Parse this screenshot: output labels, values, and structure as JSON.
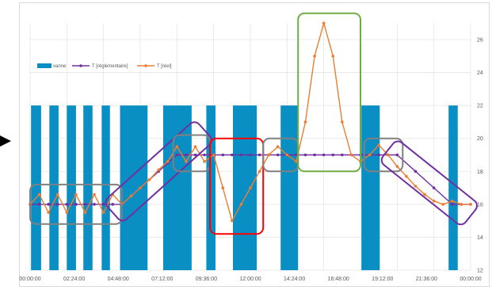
{
  "chart_data": {
    "type": "bar+line",
    "x_tick_labels": [
      "00:00:00",
      "02:24:00",
      "04:48:00",
      "07:12:00",
      "09:36:00",
      "12:00:00",
      "14:24:00",
      "16:48:00",
      "19:12:00",
      "21:36:00",
      "00:00:00"
    ],
    "y_tick_labels": [
      "12",
      "14",
      "16",
      "18",
      "20",
      "22",
      "24",
      "26"
    ],
    "ylim": [
      12,
      27
    ],
    "grid": true,
    "legend_position": "top-left",
    "series": [
      {
        "name": "vanne",
        "kind": "bar",
        "color": "#0a8fc4",
        "value": 22,
        "intervals_hours": [
          [
            0.05,
            0.6
          ],
          [
            1.05,
            1.55
          ],
          [
            2.0,
            2.5
          ],
          [
            2.9,
            3.4
          ],
          [
            3.9,
            4.35
          ],
          [
            4.9,
            6.4
          ],
          [
            7.25,
            8.8
          ],
          [
            9.6,
            10.1
          ],
          [
            11.05,
            12.35
          ],
          [
            13.65,
            14.6
          ],
          [
            18.05,
            19.05
          ],
          [
            22.8,
            23.3
          ]
        ]
      },
      {
        "name": "T [réglementaire]",
        "kind": "line",
        "color": "#7030a0",
        "x_hours": [
          0,
          0.5,
          1,
          1.5,
          2,
          2.5,
          3,
          3.5,
          4,
          4.5,
          5,
          6,
          7,
          7.5,
          8,
          8.5,
          9,
          9.5,
          10,
          10.5,
          11,
          11.5,
          12,
          12.5,
          13,
          13.5,
          14,
          14.5,
          15,
          15.5,
          16,
          16.5,
          17,
          17.5,
          18,
          18.5,
          19,
          19.5,
          20,
          21,
          22,
          23,
          23.5,
          24
        ],
        "values": [
          16,
          16,
          16,
          16,
          16,
          16,
          16,
          16,
          16,
          16,
          16,
          17,
          18,
          18.5,
          19,
          19,
          19,
          19,
          19,
          19,
          19,
          19,
          19,
          19,
          19,
          19,
          19,
          19,
          19,
          19,
          19,
          19,
          19,
          19,
          19,
          19,
          19,
          19,
          19,
          18,
          17,
          16,
          16,
          16
        ]
      },
      {
        "name": "T [réel]",
        "kind": "line",
        "color": "#ed7d31",
        "x_hours": [
          0,
          0.5,
          1,
          1.5,
          2,
          2.5,
          3,
          3.5,
          4,
          4.5,
          5,
          5.5,
          6,
          6.5,
          7,
          7.5,
          8,
          8.5,
          9,
          9.5,
          10,
          10.5,
          11,
          11.5,
          12,
          12.5,
          13,
          13.5,
          14,
          14.5,
          15,
          15.5,
          16,
          16.5,
          17,
          17.5,
          18,
          18.5,
          19,
          19.5,
          20,
          20.5,
          21,
          21.5,
          22,
          22.5,
          23,
          23.5,
          24
        ],
        "values": [
          16,
          16.6,
          15.5,
          16.6,
          15.5,
          16.6,
          15.5,
          16.6,
          15.5,
          16.6,
          16,
          16.5,
          17,
          17.5,
          18.1,
          18.6,
          19.5,
          18.6,
          19.5,
          18.6,
          19,
          17,
          15,
          16,
          17,
          18,
          19,
          19.5,
          19,
          18.6,
          21,
          25,
          27,
          25,
          21,
          19,
          18.6,
          19,
          19.6,
          19,
          18.3,
          17.7,
          17.1,
          16.6,
          16.2,
          16,
          16.2,
          16,
          16
        ]
      }
    ],
    "highlight_boxes": [
      {
        "color": "#808080",
        "x_hours": [
          0,
          5
        ],
        "y": [
          14.8,
          17.2
        ]
      },
      {
        "color": "#7030a0",
        "x_hours": [
          4.5,
          9.5
        ],
        "y": [
          15.5,
          20.5
        ],
        "rotated": true
      },
      {
        "color": "#808080",
        "x_hours": [
          7.8,
          9.8
        ],
        "y": [
          18,
          20.2
        ]
      },
      {
        "color": "#ff0000",
        "x_hours": [
          9.8,
          12.7
        ],
        "y": [
          14.2,
          20
        ]
      },
      {
        "color": "#808080",
        "x_hours": [
          12.7,
          14.6
        ],
        "y": [
          18,
          20
        ]
      },
      {
        "color": "#70ad47",
        "x_hours": [
          14.6,
          18
        ],
        "y": [
          18,
          27.6
        ]
      },
      {
        "color": "#808080",
        "x_hours": [
          18.2,
          20.3
        ],
        "y": [
          18,
          20
        ]
      },
      {
        "color": "#7030a0",
        "x_hours": [
          19.5,
          24
        ],
        "y": [
          15.3,
          19.3
        ],
        "rotated": true
      }
    ]
  }
}
